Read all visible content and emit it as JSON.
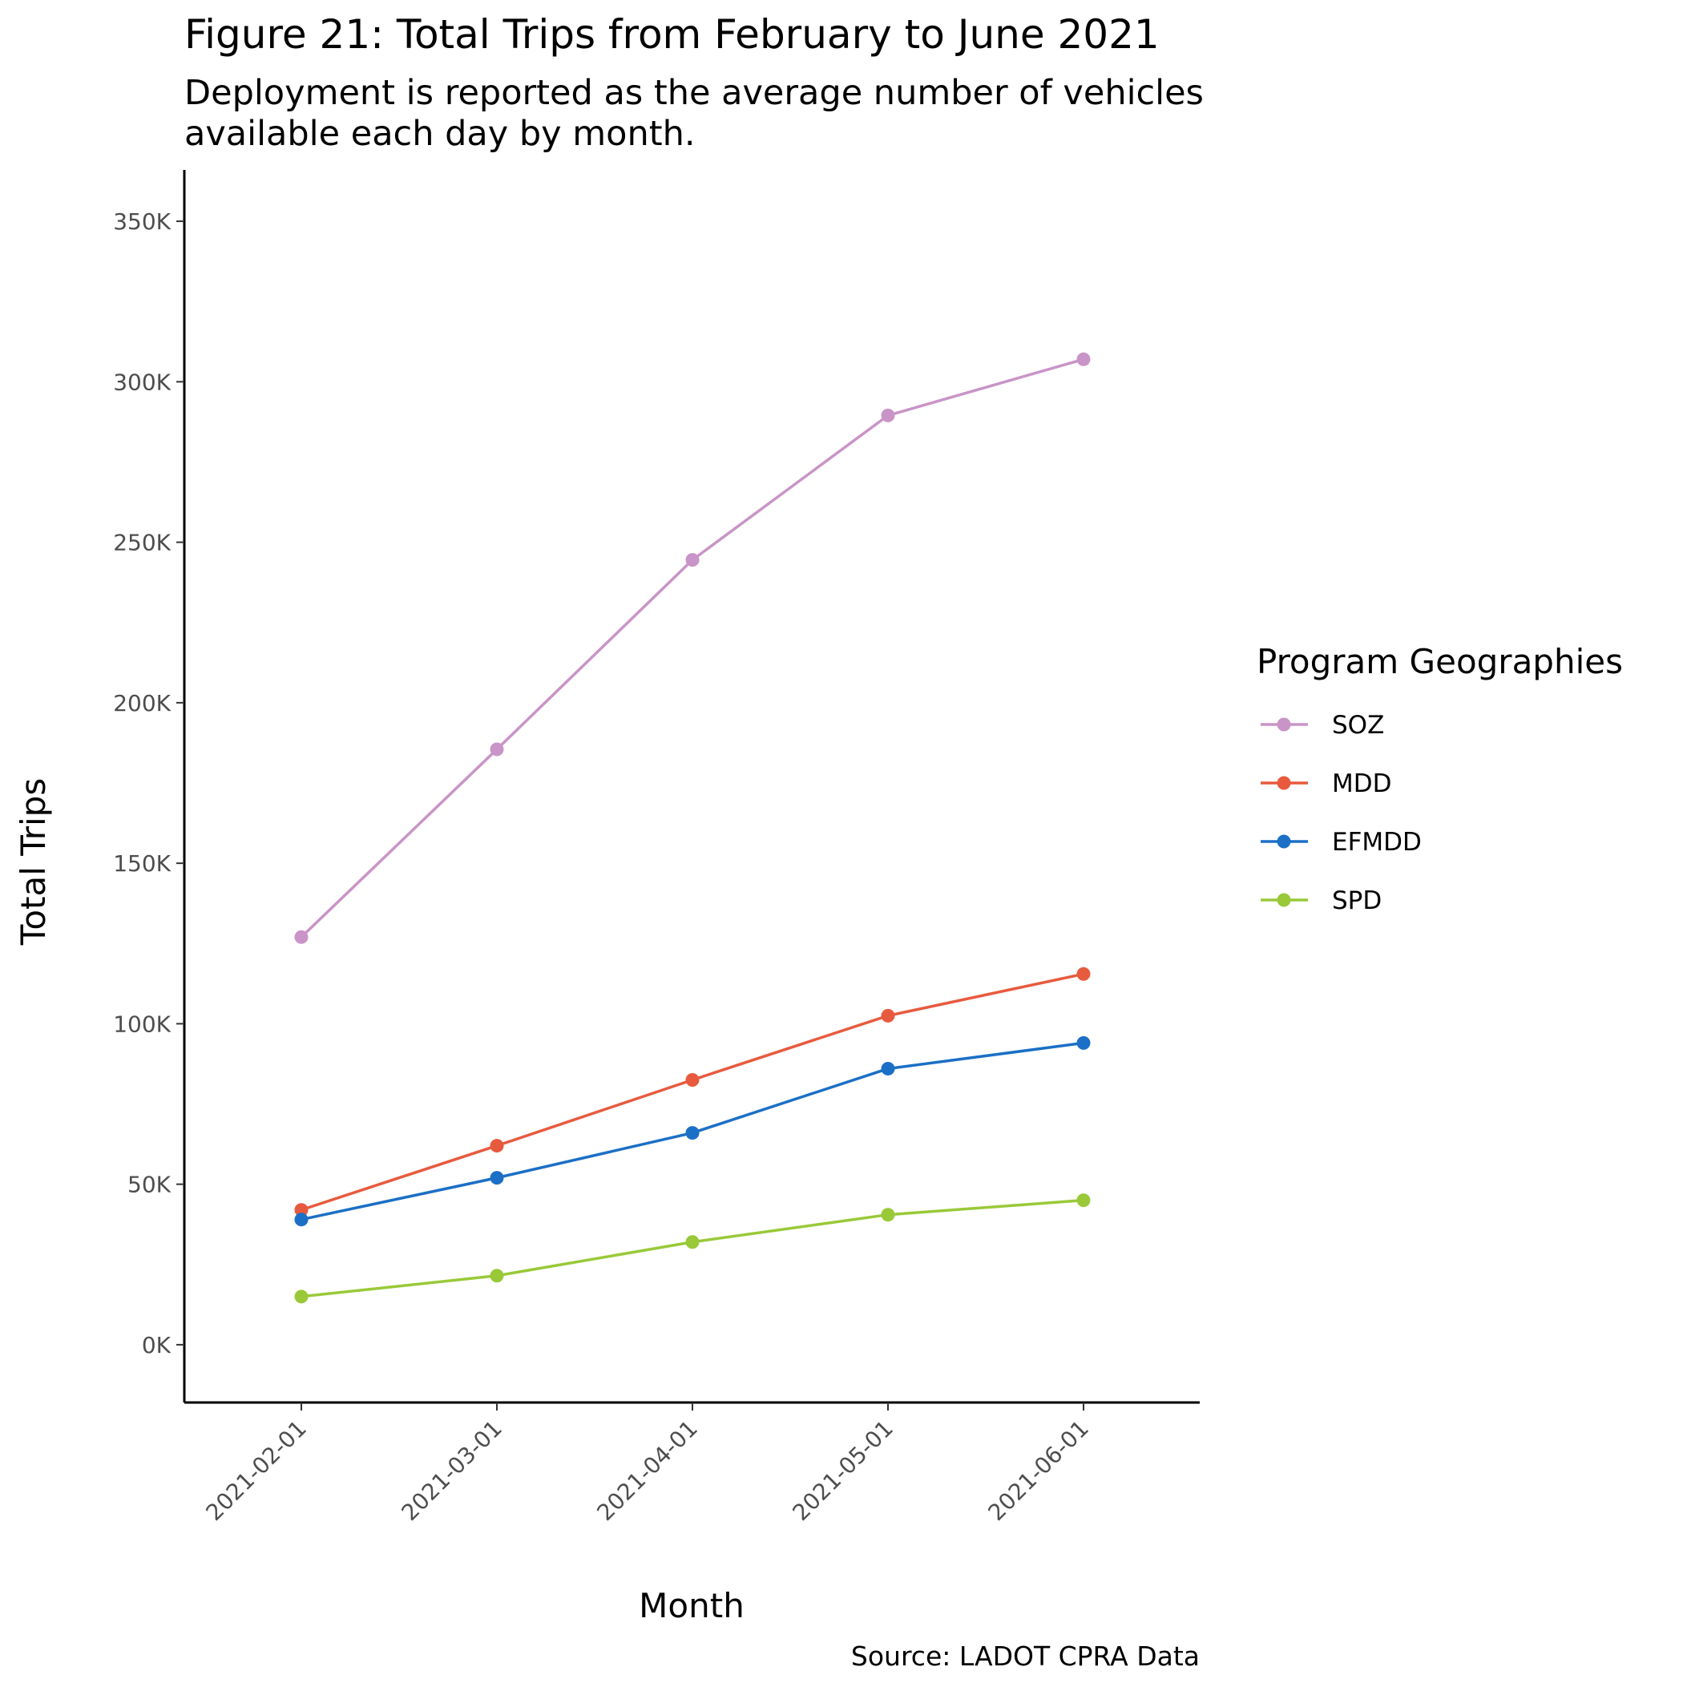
{
  "chart_data": {
    "type": "line",
    "title": "Figure 21: Total Trips from February to June 2021",
    "subtitle_lines": [
      "Deployment is reported as the average number of vehicles",
      "available each day by month."
    ],
    "xlabel": "Month",
    "ylabel": "Total Trips",
    "caption": "Source: LADOT CPRA Data",
    "x": [
      "2021-02-01",
      "2021-03-01",
      "2021-04-01",
      "2021-05-01",
      "2021-06-01"
    ],
    "yticks": [
      0,
      50000,
      100000,
      150000,
      200000,
      250000,
      300000,
      350000
    ],
    "ytick_labels": [
      "0K",
      "50K",
      "100K",
      "150K",
      "200K",
      "250K",
      "300K",
      "350K"
    ],
    "ylim": [
      -18000,
      366000
    ],
    "grid": false,
    "legend": {
      "title": "Program Geographies",
      "position": "right"
    },
    "series": [
      {
        "name": "SOZ",
        "color": "#c994c7",
        "values": [
          127000,
          185500,
          244500,
          289500,
          307000
        ]
      },
      {
        "name": "MDD",
        "color": "#e85a3e",
        "values": [
          42000,
          62000,
          82500,
          102500,
          115500
        ]
      },
      {
        "name": "EFMDD",
        "color": "#1b6fc6",
        "values": [
          39000,
          52000,
          66000,
          86000,
          94000
        ]
      },
      {
        "name": "SPD",
        "color": "#99c938",
        "values": [
          15000,
          21500,
          32000,
          40500,
          45000
        ]
      }
    ]
  }
}
